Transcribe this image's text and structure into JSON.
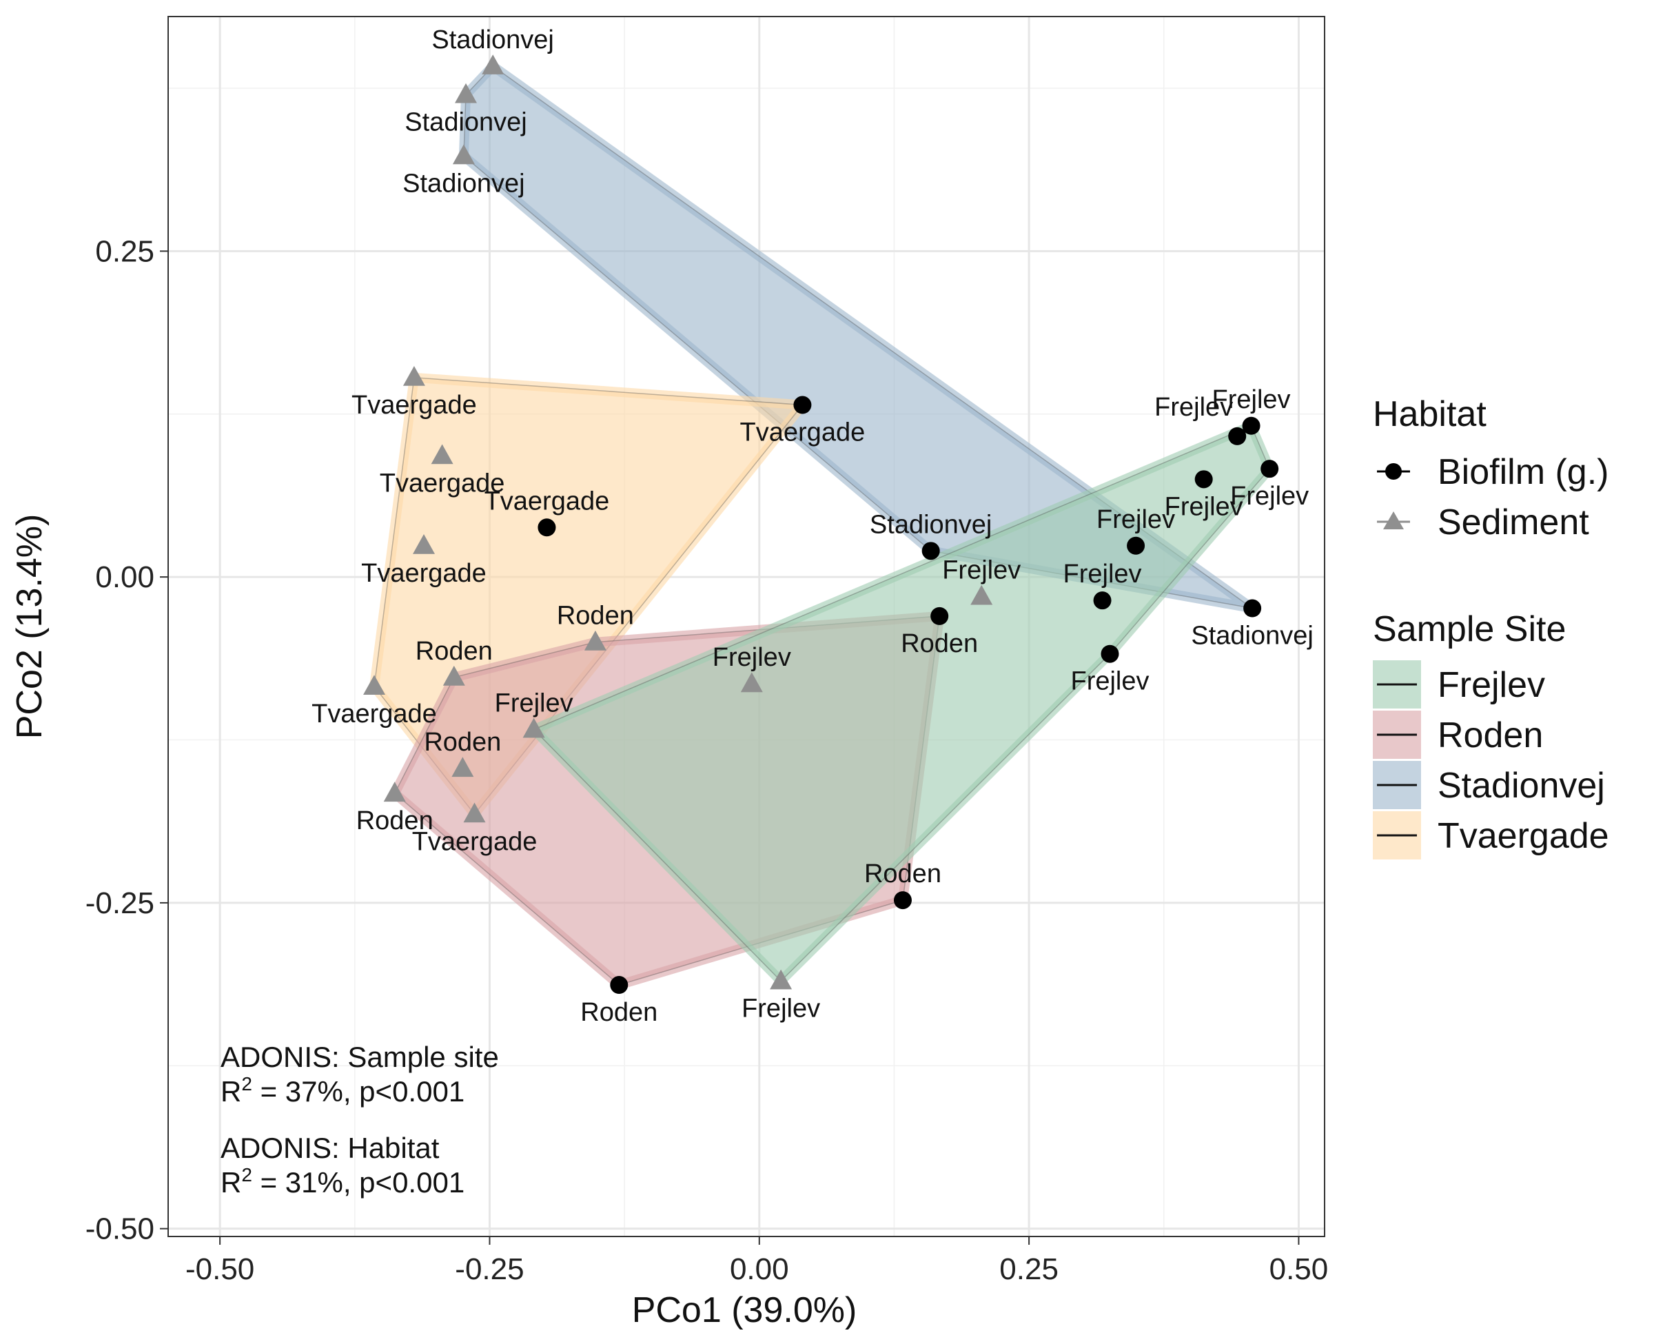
{
  "chart_data": {
    "type": "scatter",
    "xlabel": "PCo1 (39.0%)",
    "ylabel": "PCo2 (13.4%)",
    "xlim": [
      -0.548,
      0.524
    ],
    "ylim": [
      -0.506,
      0.43
    ],
    "xticks": [
      -0.5,
      -0.25,
      0.0,
      0.25,
      0.5
    ],
    "xtick_labels": [
      "-0.50",
      "-0.25",
      "0.00",
      "0.25",
      "0.50"
    ],
    "yticks": [
      -0.5,
      -0.25,
      0.0,
      0.25
    ],
    "ytick_labels": [
      "-0.50",
      "-0.25",
      "0.00",
      "0.25"
    ],
    "grid": true,
    "legend_placement": "right",
    "habitat_legend": {
      "title": "Habitat",
      "items": [
        {
          "label": "Biofilm (g.)",
          "shape": "circle",
          "color": "#000000"
        },
        {
          "label": "Sediment",
          "shape": "triangle",
          "color": "#8f8f8f"
        }
      ]
    },
    "site_legend": {
      "title": "Sample Site",
      "items": [
        {
          "label": "Frejlev",
          "color": "#9fcbb1"
        },
        {
          "label": "Roden",
          "color": "#d9a3a7"
        },
        {
          "label": "Stadionvej",
          "color": "#9db6cb"
        },
        {
          "label": "Tvaergade",
          "color": "#fdd9a6"
        }
      ]
    },
    "annotations": [
      {
        "line1": "ADONIS: Sample site",
        "r_prefix": "R",
        "r_sup": "2",
        "r_rest": " = 37%, p<0.001"
      },
      {
        "line1": "ADONIS: Habitat",
        "r_prefix": "R",
        "r_sup": "2",
        "r_rest": " = 31%, p<0.001"
      }
    ],
    "hull_order": [
      "Stadionvej",
      "Tvaergade",
      "Roden",
      "Frejlev"
    ],
    "points": [
      {
        "site": "Stadionvej",
        "habitat": "Sediment",
        "label": "Stadionvej",
        "x": -0.247,
        "y": 0.392,
        "label_pos": "above"
      },
      {
        "site": "Stadionvej",
        "habitat": "Sediment",
        "label": "Stadionvej",
        "x": -0.272,
        "y": 0.37,
        "label_pos": "below"
      },
      {
        "site": "Stadionvej",
        "habitat": "Sediment",
        "label": "Stadionvej",
        "x": -0.274,
        "y": 0.323,
        "label_pos": "below"
      },
      {
        "site": "Stadionvej",
        "habitat": "Biofilm (g.)",
        "label": "Stadionvej",
        "x": 0.159,
        "y": 0.02,
        "label_pos": "above"
      },
      {
        "site": "Stadionvej",
        "habitat": "Biofilm (g.)",
        "label": "Stadionvej",
        "x": 0.457,
        "y": -0.024,
        "label_pos": "below"
      },
      {
        "site": "Tvaergade",
        "habitat": "Sediment",
        "label": "Tvaergade",
        "x": -0.32,
        "y": 0.153,
        "label_pos": "below"
      },
      {
        "site": "Tvaergade",
        "habitat": "Biofilm (g.)",
        "label": "Tvaergade",
        "x": 0.04,
        "y": 0.132,
        "label_pos": "below"
      },
      {
        "site": "Tvaergade",
        "habitat": "Sediment",
        "label": "Tvaergade",
        "x": -0.294,
        "y": 0.093,
        "label_pos": "below"
      },
      {
        "site": "Tvaergade",
        "habitat": "Biofilm (g.)",
        "label": "Tvaergade",
        "x": -0.197,
        "y": 0.038,
        "label_pos": "above"
      },
      {
        "site": "Tvaergade",
        "habitat": "Sediment",
        "label": "Tvaergade",
        "x": -0.311,
        "y": 0.024,
        "label_pos": "below"
      },
      {
        "site": "Tvaergade",
        "habitat": "Sediment",
        "label": "Tvaergade",
        "x": -0.357,
        "y": -0.084,
        "label_pos": "below"
      },
      {
        "site": "Tvaergade",
        "habitat": "Sediment",
        "label": "Tvaergade",
        "x": -0.264,
        "y": -0.182,
        "label_pos": "below"
      },
      {
        "site": "Roden",
        "habitat": "Sediment",
        "label": "Roden",
        "x": -0.152,
        "y": -0.05,
        "label_pos": "above"
      },
      {
        "site": "Roden",
        "habitat": "Sediment",
        "label": "Roden",
        "x": -0.283,
        "y": -0.077,
        "label_pos": "above"
      },
      {
        "site": "Roden",
        "habitat": "Sediment",
        "label": "Roden",
        "x": -0.275,
        "y": -0.147,
        "label_pos": "above"
      },
      {
        "site": "Roden",
        "habitat": "Sediment",
        "label": "Roden",
        "x": -0.338,
        "y": -0.166,
        "label_pos": "below"
      },
      {
        "site": "Roden",
        "habitat": "Biofilm (g.)",
        "label": "Roden",
        "x": 0.167,
        "y": -0.03,
        "label_pos": "below"
      },
      {
        "site": "Roden",
        "habitat": "Biofilm (g.)",
        "label": "Roden",
        "x": 0.133,
        "y": -0.248,
        "label_pos": "above"
      },
      {
        "site": "Roden",
        "habitat": "Biofilm (g.)",
        "label": "Roden",
        "x": -0.13,
        "y": -0.313,
        "label_pos": "below"
      },
      {
        "site": "Frejlev",
        "habitat": "Biofilm (g.)",
        "label": "Frejlev",
        "x": 0.456,
        "y": 0.116,
        "label_pos": "above"
      },
      {
        "site": "Frejlev",
        "habitat": "Biofilm (g.)",
        "label": "Frejlev",
        "x": 0.443,
        "y": 0.108,
        "label_pos": "above-left"
      },
      {
        "site": "Frejlev",
        "habitat": "Biofilm (g.)",
        "label": "Frejlev",
        "x": 0.473,
        "y": 0.083,
        "label_pos": "below"
      },
      {
        "site": "Frejlev",
        "habitat": "Biofilm (g.)",
        "label": "Frejlev",
        "x": 0.412,
        "y": 0.075,
        "label_pos": "below"
      },
      {
        "site": "Frejlev",
        "habitat": "Biofilm (g.)",
        "label": "Frejlev",
        "x": 0.349,
        "y": 0.024,
        "label_pos": "above"
      },
      {
        "site": "Frejlev",
        "habitat": "Biofilm (g.)",
        "label": "Frejlev",
        "x": 0.318,
        "y": -0.018,
        "label_pos": "above"
      },
      {
        "site": "Frejlev",
        "habitat": "Biofilm (g.)",
        "label": "Frejlev",
        "x": 0.325,
        "y": -0.059,
        "label_pos": "below"
      },
      {
        "site": "Frejlev",
        "habitat": "Sediment",
        "label": "Frejlev",
        "x": 0.206,
        "y": -0.015,
        "label_pos": "above"
      },
      {
        "site": "Frejlev",
        "habitat": "Sediment",
        "label": "Frejlev",
        "x": -0.007,
        "y": -0.082,
        "label_pos": "above"
      },
      {
        "site": "Frejlev",
        "habitat": "Sediment",
        "label": "Frejlev",
        "x": -0.209,
        "y": -0.117,
        "label_pos": "above"
      },
      {
        "site": "Frejlev",
        "habitat": "Sediment",
        "label": "Frejlev",
        "x": 0.02,
        "y": -0.31,
        "label_pos": "below"
      }
    ]
  }
}
